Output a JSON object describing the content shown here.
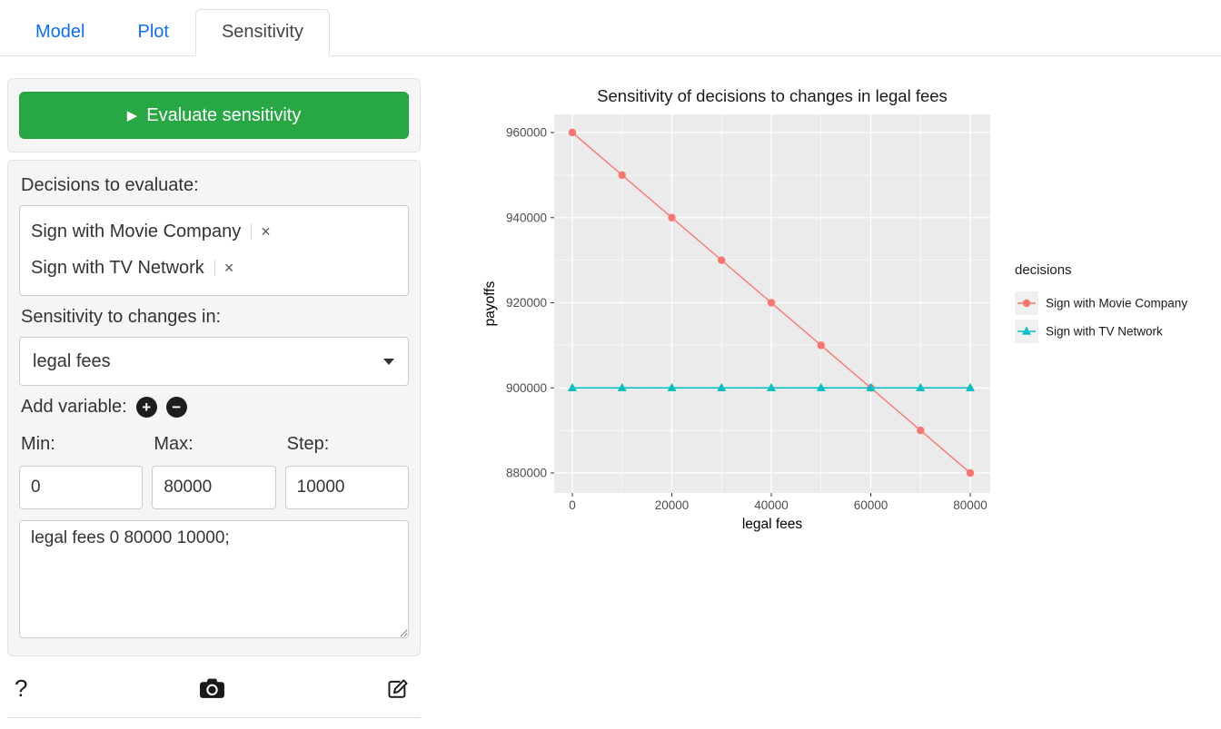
{
  "tabs": [
    {
      "label": "Model",
      "active": false
    },
    {
      "label": "Plot",
      "active": false
    },
    {
      "label": "Sensitivity",
      "active": true
    }
  ],
  "icons": {
    "play": "▶",
    "plus": "+",
    "minus": "−",
    "remove": "×",
    "help": "?"
  },
  "sidebar": {
    "evaluate_button": "Evaluate sensitivity",
    "decisions_label": "Decisions to evaluate:",
    "decisions": [
      "Sign with Movie Company",
      "Sign with TV Network"
    ],
    "sensitivity_label": "Sensitivity to changes in:",
    "variable_select_value": "legal fees",
    "add_variable_label": "Add variable:",
    "min_label": "Min:",
    "max_label": "Max:",
    "step_label": "Step:",
    "min_value": "0",
    "max_value": "80000",
    "step_value": "10000",
    "textarea_value": "legal fees 0 80000 10000;"
  },
  "chart_data": {
    "type": "line",
    "title": "Sensitivity of decisions to changes in legal fees",
    "xlabel": "legal fees",
    "ylabel": "payoffs",
    "x": [
      0,
      10000,
      20000,
      30000,
      40000,
      50000,
      60000,
      70000,
      80000
    ],
    "series": [
      {
        "name": "Sign with Movie Company",
        "color": "#F8766D",
        "marker": "circle",
        "values": [
          960000,
          950000,
          940000,
          930000,
          920000,
          910000,
          900000,
          890000,
          880000
        ]
      },
      {
        "name": "Sign with TV Network",
        "color": "#00BFC4",
        "marker": "triangle",
        "values": [
          900000,
          900000,
          900000,
          900000,
          900000,
          900000,
          900000,
          900000,
          900000
        ]
      }
    ],
    "x_ticks": [
      0,
      20000,
      40000,
      60000,
      80000
    ],
    "y_ticks": [
      880000,
      900000,
      920000,
      940000,
      960000
    ],
    "xlim": [
      0,
      80000
    ],
    "ylim": [
      876000,
      964000
    ],
    "grid": true,
    "legend_title": "decisions",
    "legend_position": "right",
    "panel_color": "#EBEBEB",
    "grid_color": "#FFFFFF",
    "key_color": "#F0F0F0"
  }
}
